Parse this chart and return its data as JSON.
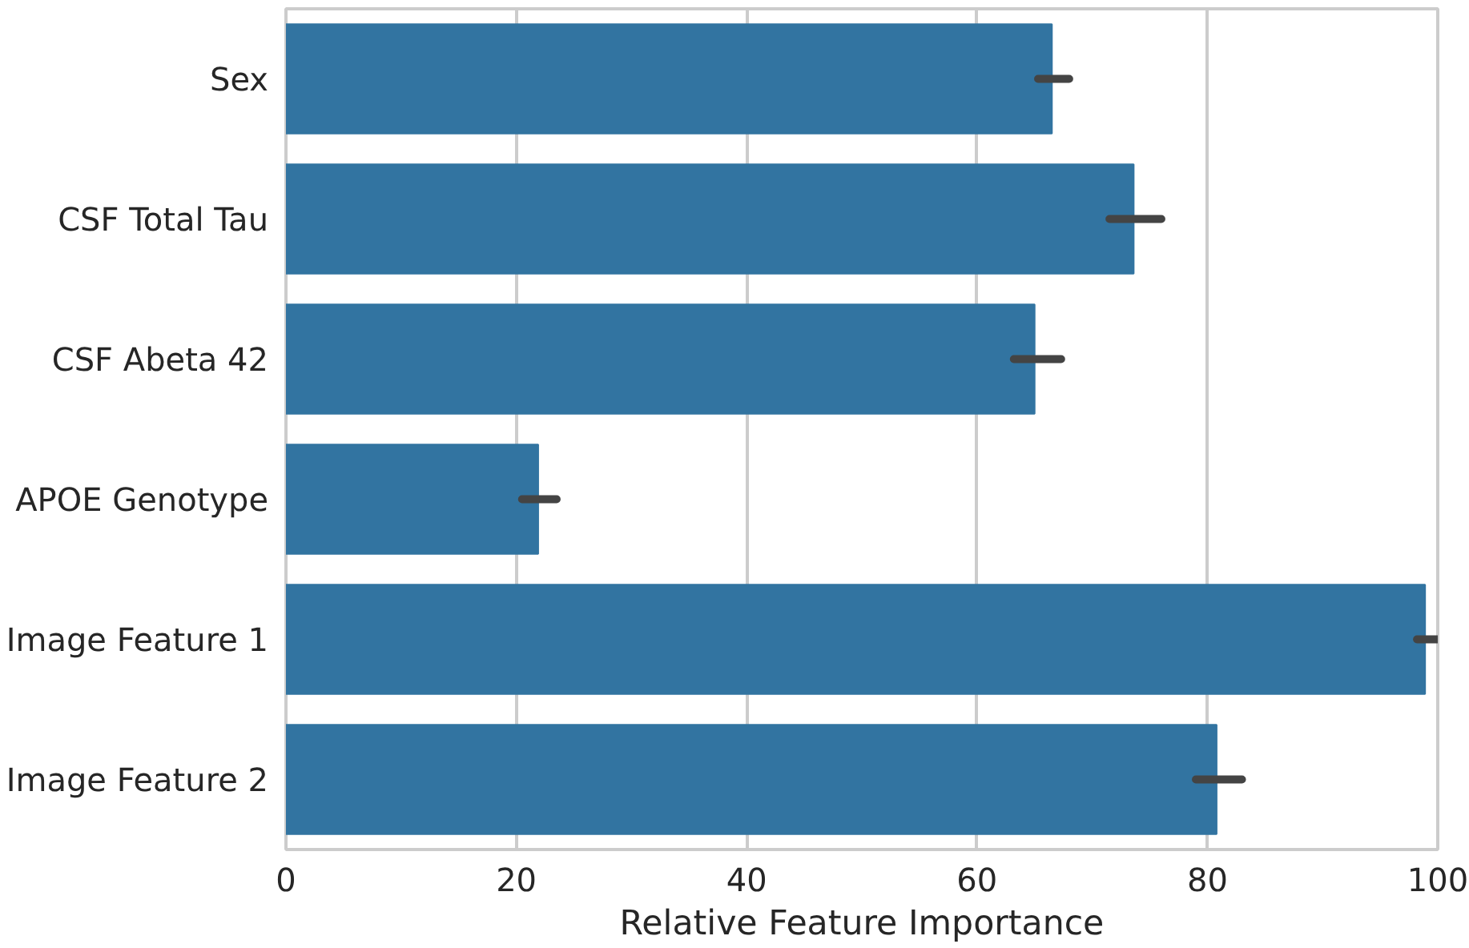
{
  "chart_data": {
    "type": "bar",
    "orientation": "horizontal",
    "xlabel": "Relative Feature Importance",
    "categories": [
      "Sex",
      "CSF Total Tau",
      "CSF Abeta 42",
      "APOE Genotype",
      "Image Feature 1",
      "Image Feature 2"
    ],
    "values": [
      66.5,
      73.6,
      65.0,
      21.9,
      98.9,
      80.8
    ],
    "errors": [
      [
        65.3,
        68.0
      ],
      [
        71.5,
        76.0
      ],
      [
        63.2,
        67.3
      ],
      [
        20.5,
        23.5
      ],
      [
        98.2,
        100.0
      ],
      [
        79.0,
        83.0
      ]
    ],
    "color": "#3274a1",
    "xlim": [
      0,
      100
    ],
    "xticks": [
      0,
      20,
      40,
      60,
      80,
      100
    ],
    "grid": "x"
  }
}
